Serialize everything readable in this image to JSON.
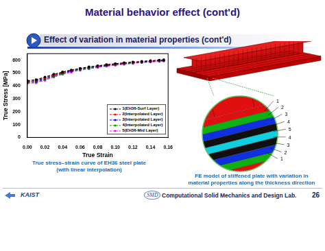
{
  "header": {
    "title": "Material behavior effect (cont'd)",
    "subtitle": "Effect of variation in material properties (cont'd)"
  },
  "chart_data": {
    "type": "line",
    "x_label": "True Strain",
    "y_label": "True Stress [MPa]",
    "x": [
      0,
      0.01,
      0.02,
      0.03,
      0.04,
      0.05,
      0.06,
      0.07,
      0.08,
      0.09,
      0.1,
      0.11,
      0.12,
      0.13,
      0.14,
      0.15,
      0.155
    ],
    "series": [
      {
        "name": "1(EH36-Surf Layer)",
        "color": "#000000",
        "marker": "circle",
        "line_style": "dashed",
        "values": [
          440,
          448,
          468,
          490,
          508,
          523,
          536,
          547,
          556,
          565,
          572,
          579,
          585,
          590,
          595,
          600,
          602
        ]
      },
      {
        "name": "2(Interpolated Layer)",
        "color": "#ff0000",
        "marker": "circle",
        "line_style": "dashed",
        "values": [
          435,
          442,
          462,
          485,
          504,
          520,
          533,
          544,
          553,
          562,
          569,
          576,
          582,
          588,
          593,
          597,
          600
        ]
      },
      {
        "name": "3(Interpolated Layer)",
        "color": "#0000ff",
        "marker": "circle",
        "line_style": "dashed",
        "values": [
          430,
          436,
          456,
          480,
          500,
          516,
          530,
          541,
          550,
          559,
          567,
          574,
          580,
          585,
          590,
          595,
          597
        ]
      },
      {
        "name": "4(Interpolated Layer)",
        "color": "#00a000",
        "marker": "circle",
        "line_style": "dashed",
        "values": [
          425,
          430,
          450,
          474,
          495,
          512,
          526,
          537,
          547,
          556,
          564,
          571,
          577,
          583,
          588,
          592,
          595
        ]
      },
      {
        "name": "5(EH36-Mid Layer)",
        "color": "#ff00ff",
        "marker": "circle",
        "line_style": "dashed",
        "values": [
          420,
          424,
          444,
          468,
          490,
          507,
          521,
          533,
          543,
          552,
          560,
          567,
          574,
          580,
          585,
          590,
          593
        ]
      }
    ],
    "xlim": [
      0,
      0.16
    ],
    "xticks": [
      {
        "value": 0,
        "label": "0.00"
      },
      0.02,
      0.04,
      0.06,
      0.08,
      {
        "value": 0.1,
        "label": "0.10"
      },
      0.12,
      0.14,
      0.16
    ],
    "ylim": [
      0,
      650
    ],
    "yticks": [
      0,
      100,
      200,
      300,
      400,
      500,
      600
    ],
    "grid": false,
    "legend": "lower right"
  },
  "captions": {
    "chart": [
      "True stress–strain curve of EH36 steel plate",
      "(with linear interpolation)"
    ],
    "model": [
      "FE model of stiffened plate with variation in",
      "material properties along the thickness direction"
    ]
  },
  "figure": {
    "layer_labels": [
      1,
      2,
      3,
      4,
      5,
      4,
      3,
      2,
      1
    ]
  },
  "footer": {
    "logo_left": "KAIST",
    "logo_right": "SMD",
    "lab": "Computational Solid Mechanics and Design Lab.",
    "page": 26
  }
}
